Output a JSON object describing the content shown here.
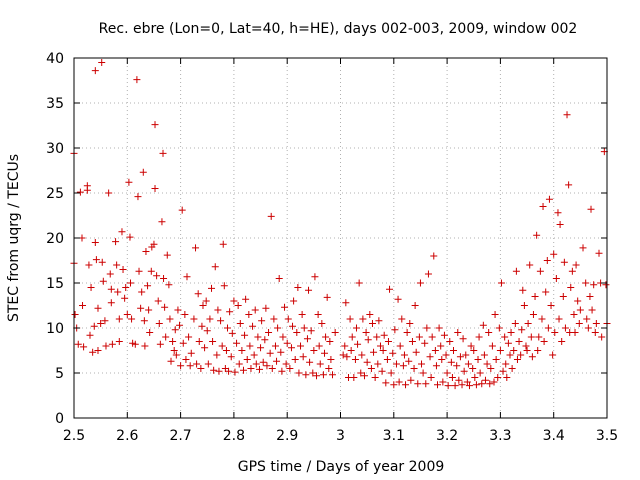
{
  "chart_data": {
    "type": "scatter",
    "title": "Rec. ebre (Lon=0, Lat=40, h=HE), days 002-003, 2009, window 002",
    "xlabel": "GPS time / Days of year 2009",
    "ylabel": "STEC from uqrg / TECUs",
    "xlim": [
      2.5,
      3.5
    ],
    "ylim": [
      0,
      40
    ],
    "xticks": [
      2.5,
      2.6,
      2.7,
      2.8,
      2.9,
      3.0,
      3.1,
      3.2,
      3.3,
      3.4,
      3.5
    ],
    "xtick_labels": [
      "2.5",
      "2.6",
      "2.7",
      "2.8",
      "2.9",
      "3",
      "3.1",
      "3.2",
      "3.3",
      "3.4",
      "3.5"
    ],
    "yticks": [
      0,
      5,
      10,
      15,
      20,
      25,
      30,
      35,
      40
    ],
    "ytick_labels": [
      "0",
      "5",
      "10",
      "15",
      "20",
      "25",
      "30",
      "35",
      "40"
    ],
    "marker": "+",
    "series_color": "#cc0000",
    "grid": "dotted",
    "points": [
      [
        2.5,
        29.4
      ],
      [
        2.5,
        17.2
      ],
      [
        2.502,
        11.5
      ],
      [
        2.505,
        10.0
      ],
      [
        2.508,
        8.2
      ],
      [
        2.512,
        25.1
      ],
      [
        2.515,
        20.0
      ],
      [
        2.516,
        12.5
      ],
      [
        2.518,
        7.9
      ],
      [
        2.525,
        25.8
      ],
      [
        2.525,
        25.3
      ],
      [
        2.528,
        17.0
      ],
      [
        2.53,
        9.2
      ],
      [
        2.532,
        14.5
      ],
      [
        2.535,
        7.3
      ],
      [
        2.538,
        10.2
      ],
      [
        2.54,
        38.6
      ],
      [
        2.54,
        19.5
      ],
      [
        2.542,
        17.6
      ],
      [
        2.545,
        12.2
      ],
      [
        2.545,
        7.5
      ],
      [
        2.55,
        10.5
      ],
      [
        2.552,
        39.5
      ],
      [
        2.553,
        17.3
      ],
      [
        2.555,
        15.2
      ],
      [
        2.558,
        10.8
      ],
      [
        2.56,
        8.0
      ],
      [
        2.565,
        25.0
      ],
      [
        2.568,
        16.0
      ],
      [
        2.57,
        14.3
      ],
      [
        2.57,
        12.8
      ],
      [
        2.572,
        8.2
      ],
      [
        2.578,
        19.6
      ],
      [
        2.58,
        17.0
      ],
      [
        2.582,
        14.0
      ],
      [
        2.585,
        11.0
      ],
      [
        2.585,
        8.5
      ],
      [
        2.59,
        20.7
      ],
      [
        2.592,
        16.5
      ],
      [
        2.595,
        13.3
      ],
      [
        2.597,
        14.5
      ],
      [
        2.6,
        11.5
      ],
      [
        2.603,
        26.2
      ],
      [
        2.605,
        20.1
      ],
      [
        2.606,
        15.0
      ],
      [
        2.608,
        11.0
      ],
      [
        2.61,
        8.3
      ],
      [
        2.615,
        8.2
      ],
      [
        2.618,
        37.6
      ],
      [
        2.62,
        24.6
      ],
      [
        2.622,
        16.3
      ],
      [
        2.625,
        12.2
      ],
      [
        2.627,
        14.0
      ],
      [
        2.63,
        27.3
      ],
      [
        2.632,
        10.8
      ],
      [
        2.633,
        8.0
      ],
      [
        2.635,
        18.5
      ],
      [
        2.638,
        14.7
      ],
      [
        2.64,
        12.0
      ],
      [
        2.642,
        9.5
      ],
      [
        2.645,
        16.3
      ],
      [
        2.646,
        19.0
      ],
      [
        2.65,
        19.3
      ],
      [
        2.652,
        32.6
      ],
      [
        2.652,
        25.5
      ],
      [
        2.655,
        15.8
      ],
      [
        2.658,
        13.0
      ],
      [
        2.66,
        10.5
      ],
      [
        2.662,
        8.2
      ],
      [
        2.665,
        21.8
      ],
      [
        2.667,
        29.4
      ],
      [
        2.668,
        15.5
      ],
      [
        2.67,
        12.3
      ],
      [
        2.672,
        9.0
      ],
      [
        2.675,
        18.1
      ],
      [
        2.678,
        14.8
      ],
      [
        2.68,
        11.0
      ],
      [
        2.682,
        6.3
      ],
      [
        2.685,
        8.5
      ],
      [
        2.688,
        7.5
      ],
      [
        2.69,
        9.8
      ],
      [
        2.692,
        7.0
      ],
      [
        2.695,
        12.0
      ],
      [
        2.698,
        10.3
      ],
      [
        2.7,
        5.8
      ],
      [
        2.703,
        23.1
      ],
      [
        2.705,
        8.3
      ],
      [
        2.708,
        11.5
      ],
      [
        2.71,
        6.5
      ],
      [
        2.712,
        15.7
      ],
      [
        2.715,
        9.0
      ],
      [
        2.718,
        5.8
      ],
      [
        2.72,
        7.2
      ],
      [
        2.725,
        11.0
      ],
      [
        2.728,
        18.9
      ],
      [
        2.73,
        6.0
      ],
      [
        2.733,
        13.8
      ],
      [
        2.735,
        8.5
      ],
      [
        2.738,
        5.5
      ],
      [
        2.74,
        10.2
      ],
      [
        2.742,
        12.5
      ],
      [
        2.745,
        7.8
      ],
      [
        2.748,
        13.0
      ],
      [
        2.75,
        9.7
      ],
      [
        2.752,
        6.0
      ],
      [
        2.755,
        11.0
      ],
      [
        2.758,
        14.4
      ],
      [
        2.76,
        8.5
      ],
      [
        2.762,
        5.3
      ],
      [
        2.765,
        16.8
      ],
      [
        2.768,
        7.0
      ],
      [
        2.77,
        12.0
      ],
      [
        2.772,
        5.2
      ],
      [
        2.775,
        10.8
      ],
      [
        2.778,
        8.0
      ],
      [
        2.78,
        19.3
      ],
      [
        2.782,
        14.7
      ],
      [
        2.784,
        5.5
      ],
      [
        2.786,
        7.5
      ],
      [
        2.788,
        10.0
      ],
      [
        2.79,
        5.2
      ],
      [
        2.792,
        11.8
      ],
      [
        2.795,
        6.8
      ],
      [
        2.797,
        9.4
      ],
      [
        2.8,
        13.0
      ],
      [
        2.802,
        5.1
      ],
      [
        2.805,
        8.3
      ],
      [
        2.808,
        12.5
      ],
      [
        2.81,
        6.0
      ],
      [
        2.812,
        10.5
      ],
      [
        2.815,
        7.5
      ],
      [
        2.818,
        5.3
      ],
      [
        2.82,
        9.2
      ],
      [
        2.822,
        13.2
      ],
      [
        2.825,
        6.5
      ],
      [
        2.828,
        11.5
      ],
      [
        2.83,
        8.0
      ],
      [
        2.832,
        5.5
      ],
      [
        2.835,
        10.2
      ],
      [
        2.838,
        7.0
      ],
      [
        2.84,
        12.0
      ],
      [
        2.842,
        6.0
      ],
      [
        2.845,
        9.0
      ],
      [
        2.848,
        5.4
      ],
      [
        2.85,
        7.8
      ],
      [
        2.852,
        10.8
      ],
      [
        2.855,
        6.2
      ],
      [
        2.858,
        8.7
      ],
      [
        2.86,
        12.2
      ],
      [
        2.862,
        5.8
      ],
      [
        2.865,
        9.5
      ],
      [
        2.868,
        7.2
      ],
      [
        2.87,
        22.4
      ],
      [
        2.872,
        5.5
      ],
      [
        2.875,
        11.0
      ],
      [
        2.878,
        8.0
      ],
      [
        2.88,
        6.3
      ],
      [
        2.882,
        10.0
      ],
      [
        2.885,
        15.5
      ],
      [
        2.888,
        7.3
      ],
      [
        2.89,
        5.2
      ],
      [
        2.892,
        9.0
      ],
      [
        2.895,
        12.3
      ],
      [
        2.898,
        6.0
      ],
      [
        2.9,
        8.3
      ],
      [
        2.902,
        11.0
      ],
      [
        2.905,
        5.5
      ],
      [
        2.908,
        7.8
      ],
      [
        2.91,
        10.2
      ],
      [
        2.912,
        13.0
      ],
      [
        2.915,
        6.5
      ],
      [
        2.918,
        9.5
      ],
      [
        2.92,
        14.5
      ],
      [
        2.922,
        5.0
      ],
      [
        2.925,
        8.0
      ],
      [
        2.928,
        11.5
      ],
      [
        2.93,
        6.8
      ],
      [
        2.932,
        10.0
      ],
      [
        2.935,
        4.8
      ],
      [
        2.938,
        8.8
      ],
      [
        2.94,
        14.2
      ],
      [
        2.942,
        6.2
      ],
      [
        2.945,
        9.7
      ],
      [
        2.948,
        5.0
      ],
      [
        2.95,
        7.5
      ],
      [
        2.952,
        15.7
      ],
      [
        2.955,
        4.7
      ],
      [
        2.958,
        11.5
      ],
      [
        2.96,
        8.0
      ],
      [
        2.962,
        6.0
      ],
      [
        2.965,
        10.5
      ],
      [
        2.968,
        4.8
      ],
      [
        2.97,
        7.2
      ],
      [
        2.972,
        9.0
      ],
      [
        2.975,
        13.4
      ],
      [
        2.978,
        5.5
      ],
      [
        2.98,
        8.5
      ],
      [
        2.982,
        6.5
      ],
      [
        2.985,
        4.8
      ],
      [
        2.99,
        9.5
      ],
      [
        3.005,
        7.0
      ],
      [
        3.008,
        8.0
      ],
      [
        3.01,
        12.8
      ],
      [
        3.012,
        6.8
      ],
      [
        3.015,
        4.5
      ],
      [
        3.018,
        11.0
      ],
      [
        3.02,
        7.5
      ],
      [
        3.022,
        9.0
      ],
      [
        3.025,
        4.5
      ],
      [
        3.028,
        6.5
      ],
      [
        3.03,
        10.0
      ],
      [
        3.032,
        8.2
      ],
      [
        3.035,
        15.0
      ],
      [
        3.038,
        5.0
      ],
      [
        3.04,
        7.0
      ],
      [
        3.042,
        11.0
      ],
      [
        3.045,
        4.7
      ],
      [
        3.048,
        9.5
      ],
      [
        3.05,
        6.2
      ],
      [
        3.052,
        8.7
      ],
      [
        3.055,
        11.5
      ],
      [
        3.058,
        5.5
      ],
      [
        3.06,
        10.5
      ],
      [
        3.062,
        7.3
      ],
      [
        3.065,
        4.5
      ],
      [
        3.068,
        9.0
      ],
      [
        3.07,
        6.0
      ],
      [
        3.072,
        10.8
      ],
      [
        3.075,
        8.0
      ],
      [
        3.078,
        5.2
      ],
      [
        3.08,
        7.5
      ],
      [
        3.082,
        9.2
      ],
      [
        3.085,
        3.9
      ],
      [
        3.088,
        6.5
      ],
      [
        3.09,
        8.5
      ],
      [
        3.092,
        14.3
      ],
      [
        3.095,
        5.0
      ],
      [
        3.098,
        7.2
      ],
      [
        3.1,
        3.7
      ],
      [
        3.102,
        9.8
      ],
      [
        3.105,
        6.0
      ],
      [
        3.108,
        13.2
      ],
      [
        3.11,
        4.0
      ],
      [
        3.112,
        8.0
      ],
      [
        3.115,
        11.0
      ],
      [
        3.118,
        5.8
      ],
      [
        3.12,
        7.0
      ],
      [
        3.122,
        3.7
      ],
      [
        3.125,
        9.5
      ],
      [
        3.128,
        6.3
      ],
      [
        3.13,
        10.5
      ],
      [
        3.132,
        4.2
      ],
      [
        3.135,
        8.5
      ],
      [
        3.138,
        5.5
      ],
      [
        3.14,
        12.5
      ],
      [
        3.142,
        7.3
      ],
      [
        3.145,
        3.8
      ],
      [
        3.148,
        9.0
      ],
      [
        3.15,
        15.0
      ],
      [
        3.152,
        6.0
      ],
      [
        3.155,
        5.0
      ],
      [
        3.158,
        8.3
      ],
      [
        3.16,
        3.8
      ],
      [
        3.162,
        10.0
      ],
      [
        3.165,
        16.0
      ],
      [
        3.168,
        6.8
      ],
      [
        3.17,
        4.5
      ],
      [
        3.172,
        9.0
      ],
      [
        3.175,
        18.0
      ],
      [
        3.178,
        7.5
      ],
      [
        3.18,
        5.8
      ],
      [
        3.182,
        3.7
      ],
      [
        3.185,
        10.0
      ],
      [
        3.188,
        8.0
      ],
      [
        3.19,
        6.5
      ],
      [
        3.192,
        4.0
      ],
      [
        3.195,
        9.2
      ],
      [
        3.198,
        7.0
      ],
      [
        3.2,
        5.0
      ],
      [
        3.202,
        3.6
      ],
      [
        3.205,
        8.5
      ],
      [
        3.208,
        6.2
      ],
      [
        3.21,
        4.5
      ],
      [
        3.212,
        7.5
      ],
      [
        3.215,
        3.6
      ],
      [
        3.218,
        5.8
      ],
      [
        3.22,
        9.5
      ],
      [
        3.222,
        4.2
      ],
      [
        3.225,
        6.8
      ],
      [
        3.228,
        3.7
      ],
      [
        3.23,
        8.8
      ],
      [
        3.232,
        5.2
      ],
      [
        3.235,
        7.0
      ],
      [
        3.238,
        4.0
      ],
      [
        3.24,
        6.0
      ],
      [
        3.242,
        3.6
      ],
      [
        3.245,
        8.0
      ],
      [
        3.248,
        5.5
      ],
      [
        3.25,
        7.5
      ],
      [
        3.252,
        4.5
      ],
      [
        3.255,
        3.7
      ],
      [
        3.258,
        6.5
      ],
      [
        3.26,
        9.0
      ],
      [
        3.262,
        5.0
      ],
      [
        3.265,
        3.8
      ],
      [
        3.268,
        10.3
      ],
      [
        3.27,
        7.0
      ],
      [
        3.272,
        4.2
      ],
      [
        3.275,
        6.0
      ],
      [
        3.278,
        9.5
      ],
      [
        3.28,
        3.8
      ],
      [
        3.282,
        5.5
      ],
      [
        3.285,
        8.0
      ],
      [
        3.288,
        4.0
      ],
      [
        3.29,
        11.5
      ],
      [
        3.292,
        6.5
      ],
      [
        3.295,
        4.5
      ],
      [
        3.298,
        10.0
      ],
      [
        3.3,
        7.5
      ],
      [
        3.302,
        15.0
      ],
      [
        3.305,
        5.2
      ],
      [
        3.308,
        9.0
      ],
      [
        3.31,
        6.0
      ],
      [
        3.312,
        4.5
      ],
      [
        3.315,
        8.3
      ],
      [
        3.318,
        7.0
      ],
      [
        3.32,
        9.5
      ],
      [
        3.322,
        5.5
      ],
      [
        3.325,
        7.5
      ],
      [
        3.328,
        10.5
      ],
      [
        3.33,
        16.3
      ],
      [
        3.332,
        6.5
      ],
      [
        3.335,
        8.5
      ],
      [
        3.338,
        7.0
      ],
      [
        3.34,
        9.8
      ],
      [
        3.342,
        14.2
      ],
      [
        3.345,
        12.5
      ],
      [
        3.348,
        8.0
      ],
      [
        3.35,
        7.5
      ],
      [
        3.352,
        10.5
      ],
      [
        3.355,
        17.0
      ],
      [
        3.358,
        9.0
      ],
      [
        3.36,
        6.8
      ],
      [
        3.362,
        11.5
      ],
      [
        3.365,
        13.5
      ],
      [
        3.368,
        20.3
      ],
      [
        3.37,
        7.5
      ],
      [
        3.372,
        9.0
      ],
      [
        3.375,
        16.3
      ],
      [
        3.378,
        11.0
      ],
      [
        3.38,
        23.5
      ],
      [
        3.382,
        8.5
      ],
      [
        3.385,
        14.0
      ],
      [
        3.388,
        17.5
      ],
      [
        3.39,
        10.0
      ],
      [
        3.392,
        24.3
      ],
      [
        3.395,
        12.5
      ],
      [
        3.398,
        7.0
      ],
      [
        3.4,
        18.2
      ],
      [
        3.402,
        9.5
      ],
      [
        3.405,
        15.5
      ],
      [
        3.408,
        22.8
      ],
      [
        3.41,
        11.0
      ],
      [
        3.412,
        21.5
      ],
      [
        3.415,
        8.5
      ],
      [
        3.418,
        13.5
      ],
      [
        3.42,
        17.3
      ],
      [
        3.422,
        10.0
      ],
      [
        3.425,
        33.7
      ],
      [
        3.428,
        25.9
      ],
      [
        3.43,
        9.5
      ],
      [
        3.432,
        14.5
      ],
      [
        3.435,
        16.3
      ],
      [
        3.438,
        11.5
      ],
      [
        3.44,
        9.5
      ],
      [
        3.442,
        17.0
      ],
      [
        3.445,
        13.0
      ],
      [
        3.448,
        10.5
      ],
      [
        3.45,
        12.0
      ],
      [
        3.455,
        18.9
      ],
      [
        3.46,
        15.0
      ],
      [
        3.462,
        11.0
      ],
      [
        3.465,
        10.0
      ],
      [
        3.468,
        13.5
      ],
      [
        3.47,
        23.2
      ],
      [
        3.472,
        12.0
      ],
      [
        3.475,
        14.8
      ],
      [
        3.478,
        9.5
      ],
      [
        3.48,
        10.5
      ],
      [
        3.485,
        18.3
      ],
      [
        3.488,
        15.0
      ],
      [
        3.49,
        9.0
      ],
      [
        3.495,
        29.6
      ],
      [
        3.498,
        14.8
      ],
      [
        3.5,
        10.5
      ]
    ]
  }
}
